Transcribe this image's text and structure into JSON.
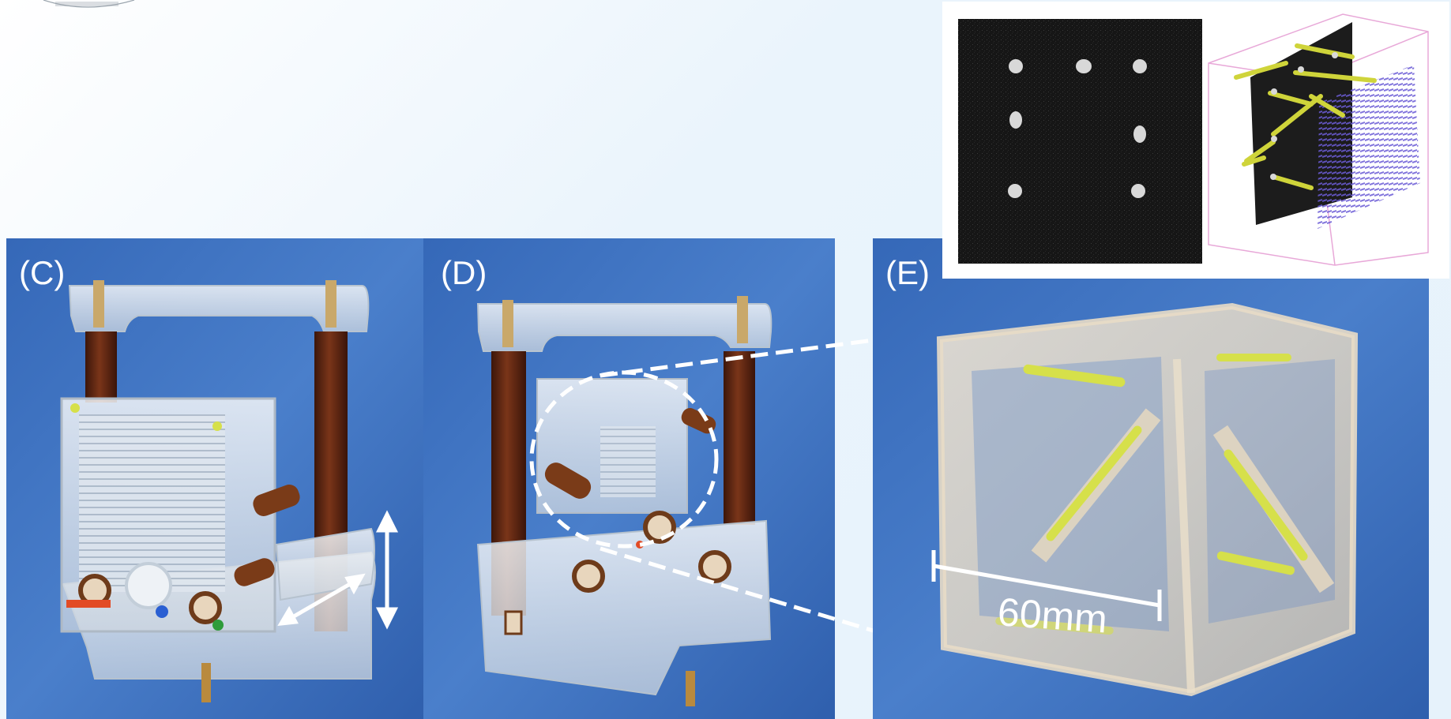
{
  "figure": {
    "panels": [
      {
        "id": "C",
        "label": "(C)"
      },
      {
        "id": "D",
        "label": "(D)"
      },
      {
        "id": "E",
        "label": "(E)"
      }
    ],
    "scale_bar_label": "60mm"
  },
  "colors": {
    "photo_blue": "#3f74c0",
    "rod_brown": "#5a2510",
    "acrylic_clear": "#e9ecef",
    "fiducial_yellow": "#d6e04a",
    "mri_background": "#141414",
    "grid_purple": "#6b5bd6"
  }
}
